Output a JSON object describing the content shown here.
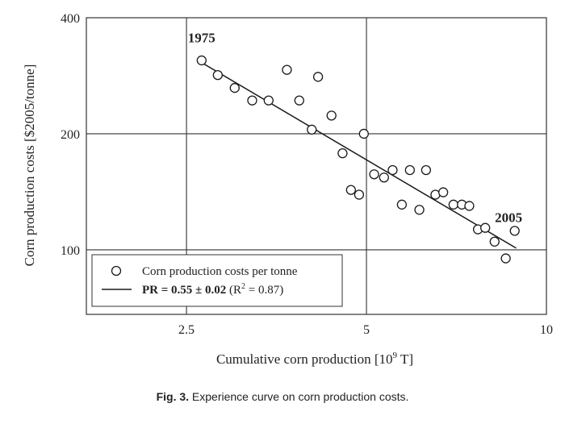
{
  "chart_data": {
    "type": "scatter",
    "xscale": "log",
    "yscale": "log",
    "xlim": [
      1.7,
      10
    ],
    "ylim": [
      68,
      400
    ],
    "xticks": [
      2.5,
      5,
      10
    ],
    "xtick_labels": [
      "2.5",
      "5",
      "10"
    ],
    "yticks": [
      100,
      200,
      400
    ],
    "ytick_labels": [
      "100",
      "200",
      "400"
    ],
    "xlabel": "Cumulative corn production [10",
    "xlabel_sup": "9",
    "xlabel_tail": " T]",
    "ylabel": "Corn production costs [$2005/tonne]",
    "grid": true,
    "series": [
      {
        "name": "Corn production costs per tonne",
        "marker": "open-circle",
        "points": [
          {
            "x": 2.65,
            "y": 310
          },
          {
            "x": 2.82,
            "y": 284
          },
          {
            "x": 3.01,
            "y": 263
          },
          {
            "x": 3.22,
            "y": 244
          },
          {
            "x": 3.43,
            "y": 244
          },
          {
            "x": 3.68,
            "y": 293
          },
          {
            "x": 3.86,
            "y": 244
          },
          {
            "x": 4.05,
            "y": 205
          },
          {
            "x": 4.15,
            "y": 281
          },
          {
            "x": 4.37,
            "y": 223
          },
          {
            "x": 4.56,
            "y": 178
          },
          {
            "x": 4.71,
            "y": 143
          },
          {
            "x": 4.86,
            "y": 139
          },
          {
            "x": 4.95,
            "y": 200
          },
          {
            "x": 5.15,
            "y": 157
          },
          {
            "x": 5.35,
            "y": 154
          },
          {
            "x": 5.53,
            "y": 161
          },
          {
            "x": 5.73,
            "y": 131
          },
          {
            "x": 5.91,
            "y": 161
          },
          {
            "x": 6.13,
            "y": 127
          },
          {
            "x": 6.29,
            "y": 161
          },
          {
            "x": 6.52,
            "y": 139
          },
          {
            "x": 6.72,
            "y": 141
          },
          {
            "x": 6.99,
            "y": 131
          },
          {
            "x": 7.22,
            "y": 131
          },
          {
            "x": 7.43,
            "y": 130
          },
          {
            "x": 7.68,
            "y": 113
          },
          {
            "x": 7.9,
            "y": 114
          },
          {
            "x": 8.19,
            "y": 105
          },
          {
            "x": 8.55,
            "y": 95
          },
          {
            "x": 8.85,
            "y": 112
          }
        ]
      }
    ],
    "fit_line": {
      "name": "PR = 0.55 ± 0.02",
      "r2_text": "(R",
      "r2_sup": "2",
      "r2_tail": " = 0.87)",
      "x": [
        2.65,
        8.9
      ],
      "y": [
        306,
        101
      ]
    },
    "annotations": [
      {
        "text": "1975",
        "x": 2.65,
        "y": 345
      },
      {
        "text": "2005",
        "x": 8.2,
        "y": 118
      }
    ],
    "legend": {
      "position": "lower-left",
      "marker_label": "Corn production costs per tonne",
      "line_label_bold": "PR = 0.55 ± 0.02",
      "line_label_tail": " (R",
      "line_label_sup": "2",
      "line_label_end": " = 0.87)"
    },
    "colors": {
      "ink": "#1a1a1a",
      "frame": "#333333"
    }
  },
  "caption": {
    "label": "Fig. 3.",
    "text": " Experience curve on corn production costs."
  }
}
